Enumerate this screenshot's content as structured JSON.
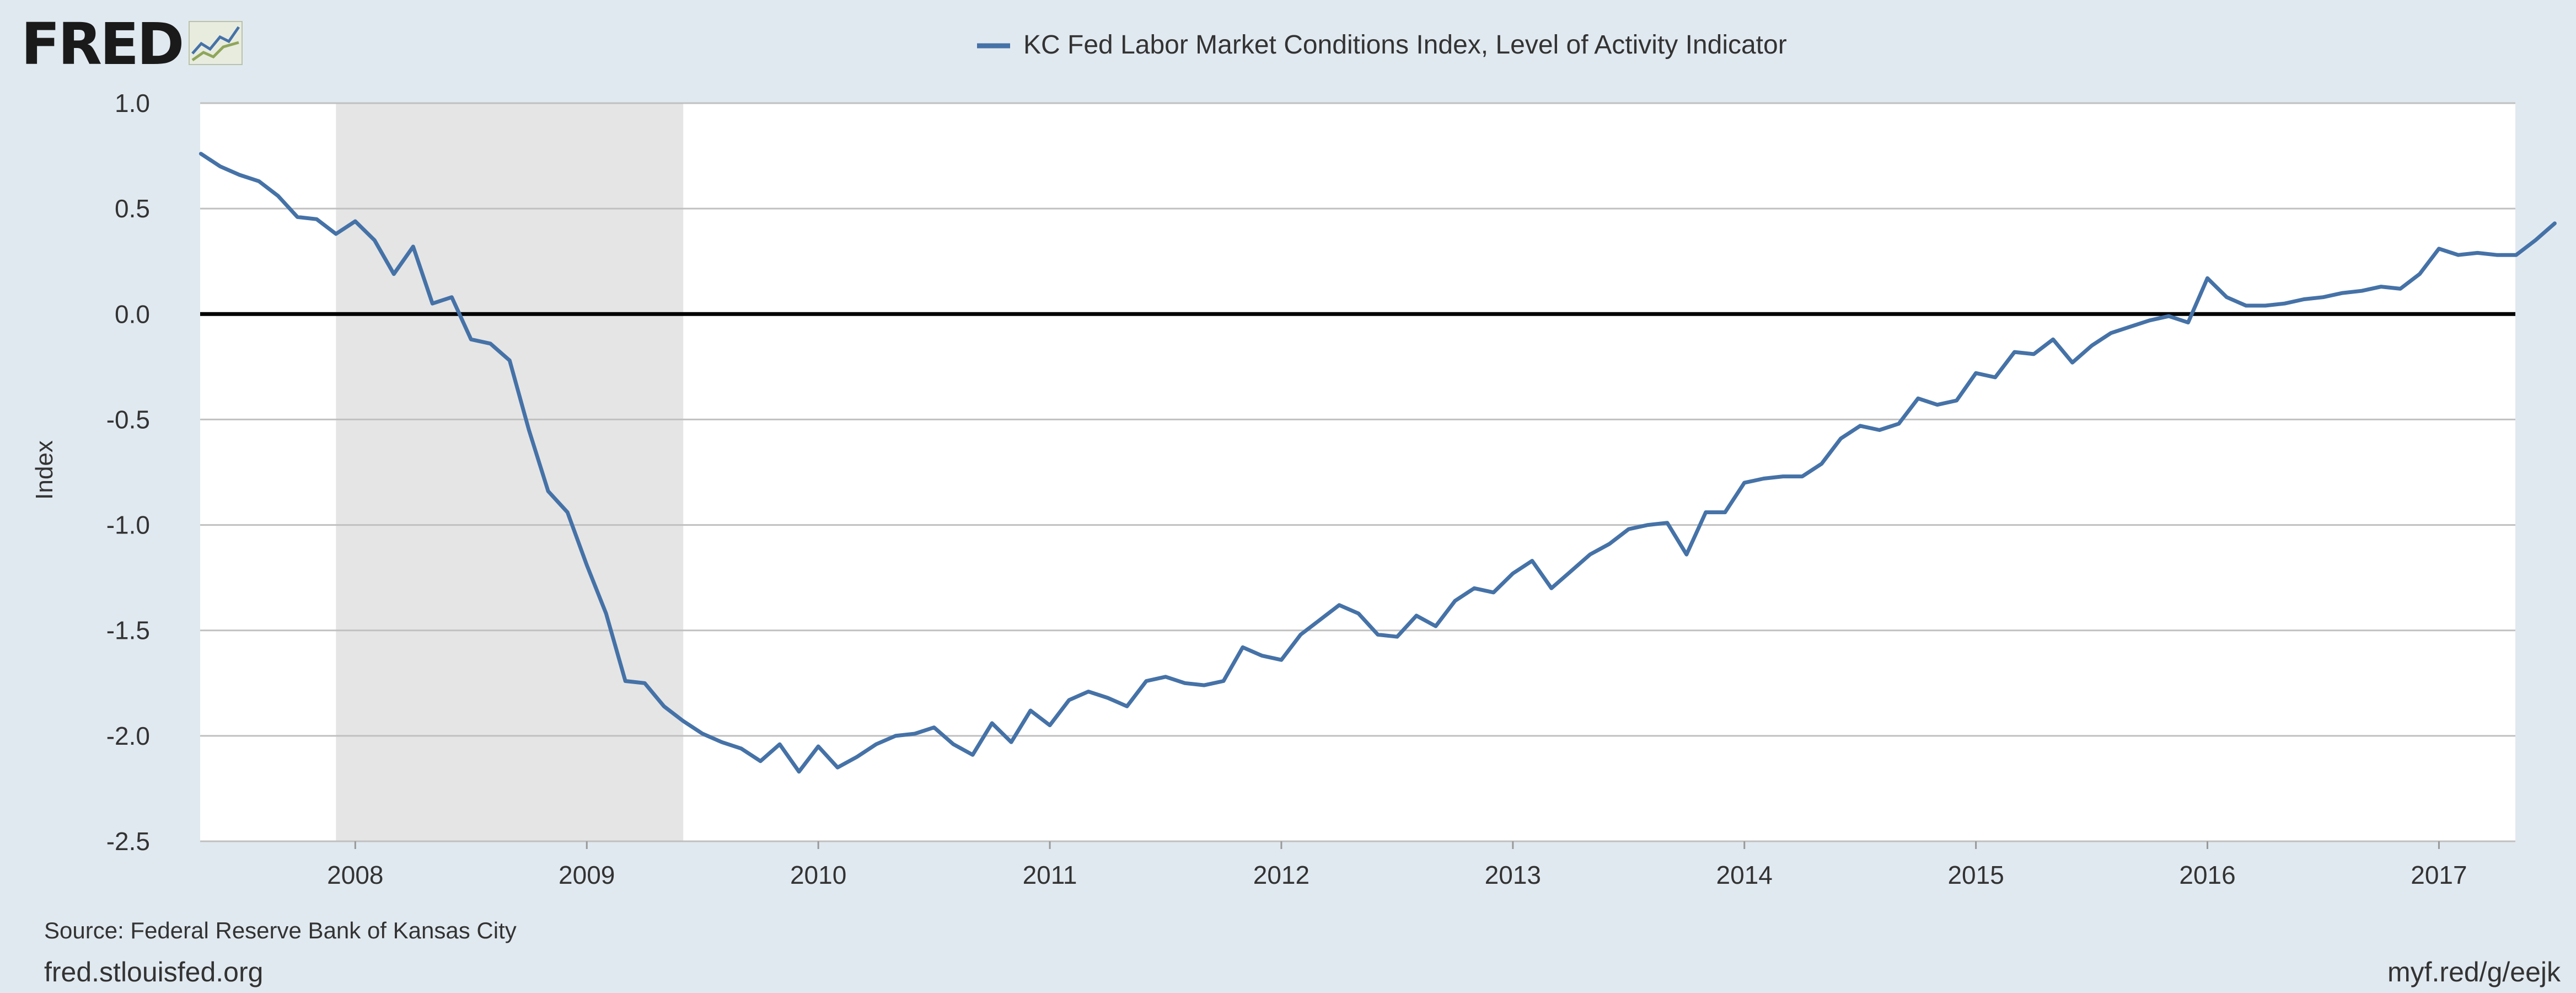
{
  "brand": {
    "logo_text": "FRED",
    "logo_icon": "fred-chart-icon"
  },
  "source_text": "Source: Federal Reserve Bank of Kansas City",
  "footer": {
    "left": "fred.stlouisfed.org",
    "right": "myf.red/g/eejk"
  },
  "colors": {
    "line": "#4572a7",
    "recession": "#e5e5e5",
    "zero_line": "#000000",
    "grid": "#c0c0c0",
    "background": "#e1e9f0",
    "plot": "#ffffff"
  },
  "chart_data": {
    "type": "line",
    "title": "",
    "xlabel": "",
    "ylabel": "Index",
    "xlim": [
      2007.33,
      2017.33
    ],
    "ylim": [
      -2.5,
      1.0
    ],
    "yticks": [
      1.0,
      0.5,
      0.0,
      -0.5,
      -1.0,
      -1.5,
      -2.0,
      -2.5
    ],
    "ytick_labels": [
      "1.0",
      "0.5",
      "0.0",
      "-0.5",
      "-1.0",
      "-1.5",
      "-2.0",
      "-2.5"
    ],
    "xticks": [
      2008,
      2009,
      2010,
      2011,
      2012,
      2013,
      2014,
      2015,
      2016,
      2017
    ],
    "xtick_labels": [
      "2008",
      "2009",
      "2010",
      "2011",
      "2012",
      "2013",
      "2014",
      "2015",
      "2016",
      "2017"
    ],
    "grid": true,
    "legend_position": "top-center",
    "recession_shading": [
      {
        "start": "2007-12",
        "end": "2009-06"
      }
    ],
    "series": [
      {
        "name": "KC Fed Labor Market Conditions Index, Level of Activity Indicator",
        "start": "2007-05",
        "frequency": "monthly",
        "values": [
          0.76,
          0.7,
          0.66,
          0.63,
          0.56,
          0.46,
          0.45,
          0.38,
          0.44,
          0.35,
          0.19,
          0.32,
          0.05,
          0.08,
          -0.12,
          -0.14,
          -0.22,
          -0.55,
          -0.84,
          -0.94,
          -1.19,
          -1.42,
          -1.74,
          -1.75,
          -1.86,
          -1.93,
          -1.99,
          -2.03,
          -2.06,
          -2.12,
          -2.04,
          -2.17,
          -2.05,
          -2.15,
          -2.1,
          -2.04,
          -2.0,
          -1.99,
          -1.96,
          -2.04,
          -2.09,
          -1.94,
          -2.03,
          -1.88,
          -1.95,
          -1.83,
          -1.79,
          -1.82,
          -1.86,
          -1.74,
          -1.72,
          -1.75,
          -1.76,
          -1.74,
          -1.58,
          -1.62,
          -1.64,
          -1.52,
          -1.45,
          -1.38,
          -1.42,
          -1.52,
          -1.53,
          -1.43,
          -1.48,
          -1.36,
          -1.3,
          -1.32,
          -1.23,
          -1.17,
          -1.3,
          -1.22,
          -1.14,
          -1.09,
          -1.02,
          -1.0,
          -0.99,
          -1.14,
          -0.94,
          -0.94,
          -0.8,
          -0.78,
          -0.77,
          -0.77,
          -0.71,
          -0.59,
          -0.53,
          -0.55,
          -0.52,
          -0.4,
          -0.43,
          -0.41,
          -0.28,
          -0.3,
          -0.18,
          -0.19,
          -0.12,
          -0.23,
          -0.15,
          -0.09,
          -0.06,
          -0.03,
          -0.01,
          -0.04,
          0.17,
          0.08,
          0.04,
          0.04,
          0.05,
          0.07,
          0.08,
          0.1,
          0.11,
          0.13,
          0.12,
          0.19,
          0.31,
          0.28,
          0.29,
          0.28,
          0.28,
          0.35,
          0.43
        ]
      }
    ]
  }
}
